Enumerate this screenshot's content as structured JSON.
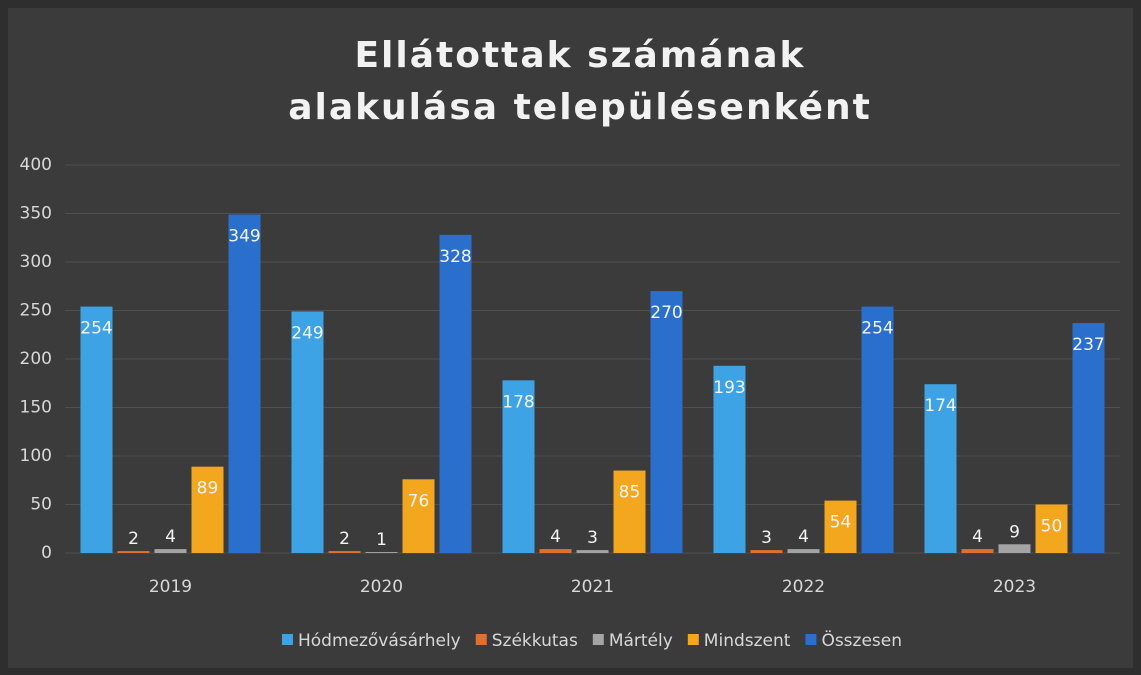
{
  "chart_data": {
    "type": "bar",
    "title": "Ellátottak számának alakulása településenként",
    "categories": [
      "2019",
      "2020",
      "2021",
      "2022",
      "2023"
    ],
    "series": [
      {
        "name": "Hódmezővásárhely",
        "color": "#3ea3e4",
        "values": [
          254,
          249,
          178,
          193,
          174
        ]
      },
      {
        "name": "Székkutas",
        "color": "#e0702e",
        "values": [
          2,
          2,
          4,
          3,
          4
        ]
      },
      {
        "name": "Mártély",
        "color": "#a4a4a4",
        "values": [
          4,
          1,
          3,
          4,
          9
        ]
      },
      {
        "name": "Mindszent",
        "color": "#f2a71e",
        "values": [
          89,
          76,
          85,
          54,
          50
        ]
      },
      {
        "name": "Összesen",
        "color": "#2b6fcc",
        "values": [
          349,
          328,
          270,
          254,
          237
        ]
      }
    ],
    "ylim": [
      0,
      400
    ],
    "yticks": [
      0,
      50,
      100,
      150,
      200,
      250,
      300,
      350,
      400
    ],
    "grid": true,
    "legend": "bottom"
  }
}
